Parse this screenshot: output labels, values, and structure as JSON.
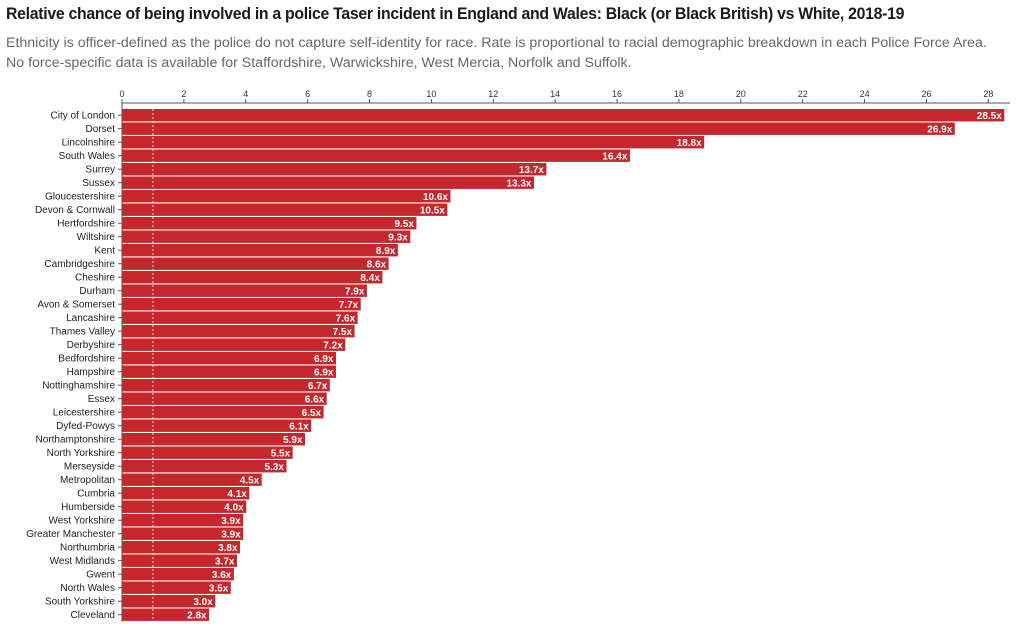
{
  "chart_data": {
    "type": "bar",
    "orientation": "horizontal",
    "title": "Relative chance of being involved in a police Taser incident in England and Wales: Black (or Black British) vs White, 2018-19",
    "subtitle": "Ethnicity is officer-defined as the police do not capture self-identity for race. Rate is proportional to racial demographic breakdown in each Police Force Area. No force-specific data is available for Staffordshire, Warwickshire, West Mercia, Norfolk and Suffolk.",
    "xlim": [
      0,
      28.7
    ],
    "xticks": [
      0,
      2,
      4,
      6,
      8,
      10,
      12,
      14,
      16,
      18,
      20,
      22,
      24,
      26,
      28
    ],
    "reference_line": 1,
    "bar_color": "#c5272d",
    "categories": [
      "City of London",
      "Dorset",
      "Lincolnshire",
      "South Wales",
      "Surrey",
      "Sussex",
      "Gloucestershire",
      "Devon & Cornwall",
      "Hertfordshire",
      "Wiltshire",
      "Kent",
      "Cambridgeshire",
      "Cheshire",
      "Durham",
      "Avon & Somerset",
      "Lancashire",
      "Thames Valley",
      "Derbyshire",
      "Bedfordshire",
      "Hampshire",
      "Nottinghamshire",
      "Essex",
      "Leicestershire",
      "Dyfed-Powys",
      "Northamptonshire",
      "North Yorkshire",
      "Merseyside",
      "Metropolitan",
      "Cumbria",
      "Humberside",
      "West Yorkshire",
      "Greater Manchester",
      "Northumbria",
      "West Midlands",
      "Gwent",
      "North Wales",
      "South Yorkshire",
      "Cleveland"
    ],
    "values": [
      28.5,
      26.9,
      18.8,
      16.4,
      13.7,
      13.3,
      10.6,
      10.5,
      9.5,
      9.3,
      8.9,
      8.6,
      8.4,
      7.9,
      7.7,
      7.6,
      7.5,
      7.2,
      6.9,
      6.9,
      6.7,
      6.6,
      6.5,
      6.1,
      5.9,
      5.5,
      5.3,
      4.5,
      4.1,
      4.0,
      3.9,
      3.9,
      3.8,
      3.7,
      3.6,
      3.5,
      3.0,
      2.8
    ],
    "value_labels": [
      "28.5x",
      "26.9x",
      "18.8x",
      "16.4x",
      "13.7x",
      "13.3x",
      "10.6x",
      "10.5x",
      "9.5x",
      "9.3x",
      "8.9x",
      "8.6x",
      "8.4x",
      "7.9x",
      "7.7x",
      "7.6x",
      "7.5x",
      "7.2x",
      "6.9x",
      "6.9x",
      "6.7x",
      "6.6x",
      "6.5x",
      "6.1x",
      "5.9x",
      "5.5x",
      "5.3x",
      "4.5x",
      "4.1x",
      "4.0x",
      "3.9x",
      "3.9x",
      "3.8x",
      "3.7x",
      "3.6x",
      "3.5x",
      "3.0x",
      "2.8x"
    ]
  }
}
